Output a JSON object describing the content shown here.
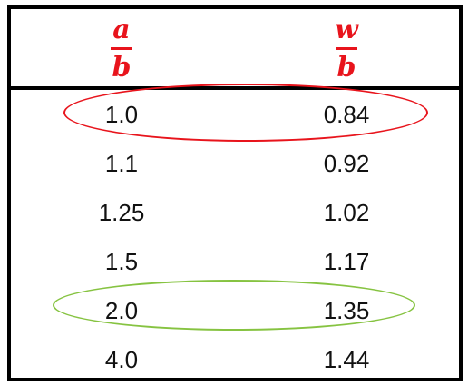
{
  "table": {
    "header": {
      "col_a": {
        "numerator": "a",
        "denominator": "b"
      },
      "col_w": {
        "numerator": "w",
        "denominator": "b"
      }
    },
    "rows": [
      {
        "a_over_b": "1.0",
        "w_over_b": "0.84"
      },
      {
        "a_over_b": "1.1",
        "w_over_b": "0.92"
      },
      {
        "a_over_b": "1.25",
        "w_over_b": "1.02"
      },
      {
        "a_over_b": "1.5",
        "w_over_b": "1.17"
      },
      {
        "a_over_b": "2.0",
        "w_over_b": "1.35"
      },
      {
        "a_over_b": "4.0",
        "w_over_b": "1.44"
      }
    ],
    "highlights": [
      {
        "row": 0,
        "color": "#e8141c"
      },
      {
        "row": 4,
        "color": "#86c341"
      }
    ],
    "colors": {
      "header_text": "#e8141c",
      "border": "#000000"
    }
  }
}
